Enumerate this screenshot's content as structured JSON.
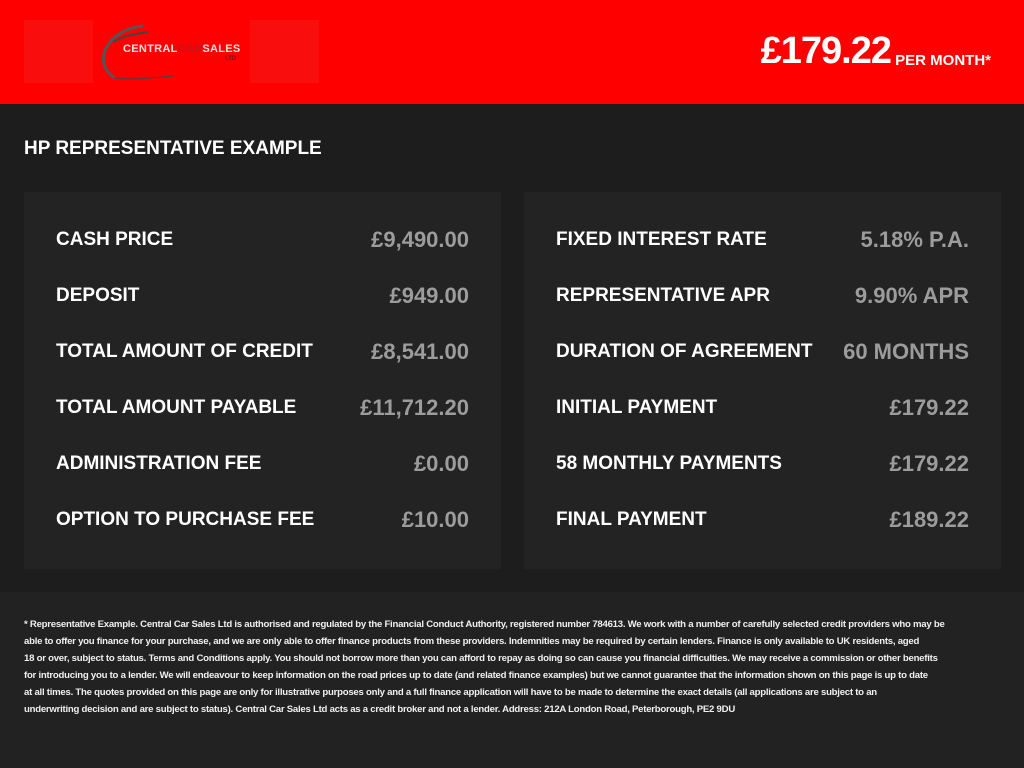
{
  "header": {
    "logo_text": "CENTRAL CAR SALES LTD",
    "logo_part1": "CENTRAL",
    "logo_part2": "CAR",
    "logo_part3": "SALES",
    "logo_ltd": "LTD",
    "monthly_price": "£179.22",
    "per_month": "PER MONTH*",
    "colors": {
      "brand": "#ff0000"
    }
  },
  "title": "HP REPRESENTATIVE EXAMPLE",
  "left_panel": [
    {
      "label": "CASH PRICE",
      "value": "£9,490.00"
    },
    {
      "label": "DEPOSIT",
      "value": "£949.00"
    },
    {
      "label": "TOTAL AMOUNT OF CREDIT",
      "value": "£8,541.00"
    },
    {
      "label": "TOTAL AMOUNT PAYABLE",
      "value": "£11,712.20"
    },
    {
      "label": "ADMINISTRATION FEE",
      "value": "£0.00"
    },
    {
      "label": "OPTION TO PURCHASE FEE",
      "value": "£10.00"
    }
  ],
  "right_panel": [
    {
      "label": "FIXED INTEREST RATE",
      "value": "5.18% P.A."
    },
    {
      "label": "REPRESENTATIVE APR",
      "value": "9.90% APR"
    },
    {
      "label": "DURATION OF AGREEMENT",
      "value": "60 MONTHS"
    },
    {
      "label": "INITIAL PAYMENT",
      "value": "£179.22"
    },
    {
      "label": "58 MONTHLY PAYMENTS",
      "value": "£179.22"
    },
    {
      "label": "FINAL PAYMENT",
      "value": "£189.22"
    }
  ],
  "footer_lines": [
    "* Representative Example. Central Car Sales Ltd is authorised and regulated by the Financial Conduct Authority, registered number 784613. We work with a number of carefully selected credit providers who may be",
    "able to offer you finance for your purchase, and we are only able to offer finance products from these providers. Indemnities may be required by certain lenders. Finance is only available to UK residents, aged",
    "18 or over, subject to status. Terms and Conditions apply. You should not borrow more than you can afford to repay as doing so can cause you financial difficulties. We may receive a commission or other benefits",
    "for introducing you to a lender. We will endeavour to keep information on the road prices up to date (and related finance examples) but we cannot guarantee that the information shown on this page is up to date",
    "at all times. The quotes provided on this page are only for illustrative purposes only and a full finance application will have to be made to determine the exact details (all applications are subject to an",
    "underwriting decision and are subject to status). Central Car Sales Ltd acts as a credit broker and not a lender. Address: 212A London Road, Peterborough, PE2 9DU"
  ]
}
